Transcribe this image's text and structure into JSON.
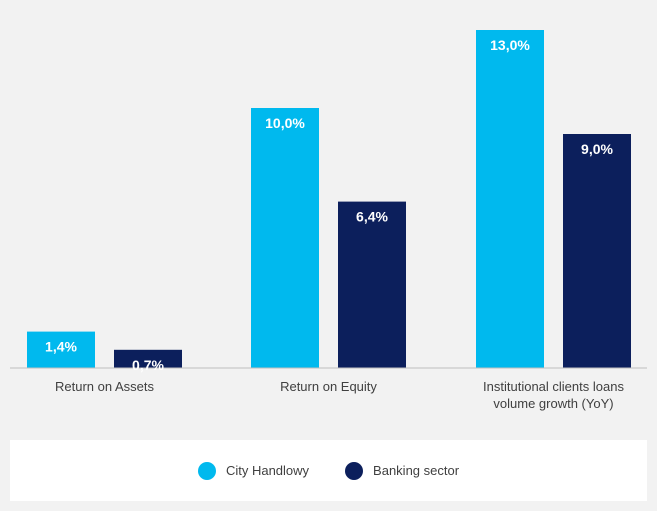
{
  "chart_data": {
    "type": "bar",
    "categories": [
      [
        "Return on Assets"
      ],
      [
        "Return on Equity"
      ],
      [
        "Institutional clients loans",
        "volume growth (YoY)"
      ]
    ],
    "series": [
      {
        "name": "City Handlowy",
        "color": "#00b9ee",
        "values": [
          1.4,
          10.0,
          13.0
        ],
        "labels": [
          "1,4%",
          "10,0%",
          "13,0%"
        ]
      },
      {
        "name": "Banking sector",
        "color": "#0c1f5c",
        "values": [
          0.7,
          6.4,
          9.0
        ],
        "labels": [
          "0,7%",
          "6,4%",
          "9,0%"
        ]
      }
    ],
    "ylim": [
      0,
      13.0
    ],
    "grid": false,
    "legend_position": "bottom"
  }
}
